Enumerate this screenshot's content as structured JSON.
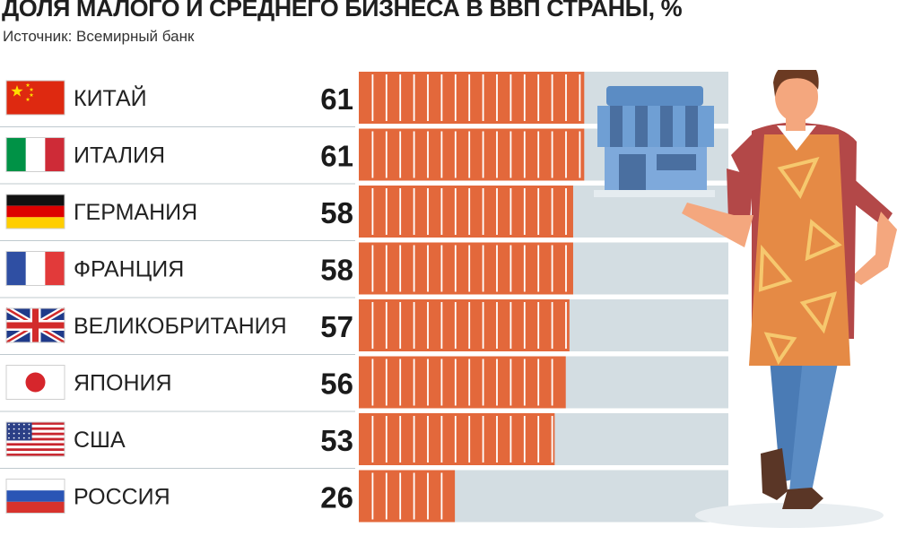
{
  "title": "ДОЛЯ МАЛОГО И СРЕДНЕГО БИЗНЕСА В ВВП СТРАНЫ, %",
  "source": "Источник: Всемирный банк",
  "colors": {
    "bar": "#e3683b",
    "track": "#d3dde2",
    "brick_line": "#ffffff",
    "divider": "#bfc9ce"
  },
  "chart_data": {
    "type": "bar",
    "orientation": "horizontal",
    "title": "ДОЛЯ МАЛОГО И СРЕДНЕГО БИЗНЕСА В ВВП СТРАНЫ, %",
    "categories": [
      "КИТАЙ",
      "ИТАЛИЯ",
      "ГЕРМАНИЯ",
      "ФРАНЦИЯ",
      "ВЕЛИКОБРИТАНИЯ",
      "ЯПОНИЯ",
      "США",
      "РОССИЯ"
    ],
    "flags": [
      "flag-china-icon",
      "flag-italy-icon",
      "flag-germany-icon",
      "flag-france-icon",
      "flag-uk-icon",
      "flag-japan-icon",
      "flag-usa-icon",
      "flag-russia-icon"
    ],
    "values": [
      61,
      61,
      58,
      58,
      57,
      56,
      53,
      26
    ],
    "unit": "%",
    "xlim": [
      0,
      100
    ]
  }
}
